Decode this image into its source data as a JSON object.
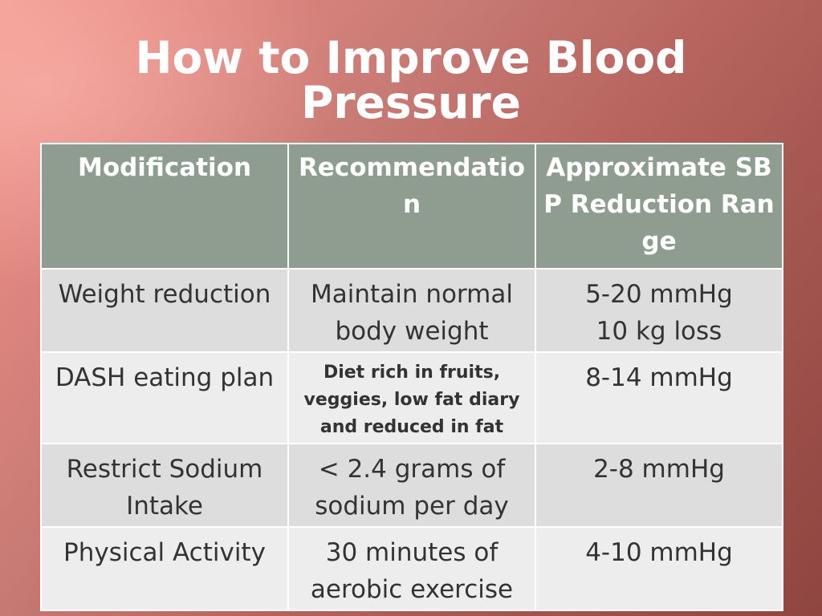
{
  "title": {
    "line1": "How to Improve Blood",
    "line2": "Pressure"
  },
  "table": {
    "headers": {
      "modification": "Modification",
      "recommendation": "Recommendation",
      "reduction": "Approximate SBP Reduction Range"
    },
    "rows": [
      {
        "modification": "Weight reduction",
        "recommendation": "Maintain normal body weight",
        "reduction_line1": "5-20 mmHg",
        "reduction_line2": "10 kg loss"
      },
      {
        "modification": "DASH eating plan",
        "recommendation": "Diet rich in fruits, veggies, low fat diary and reduced in fat",
        "reduction_line1": "8-14 mmHg"
      },
      {
        "modification": "Restrict Sodium Intake",
        "recommendation": "< 2.4 grams of sodium per day",
        "reduction_line1": "2-8 mmHg"
      },
      {
        "modification": "Physical Activity",
        "recommendation": "30 minutes of aerobic exercise",
        "reduction_line1": "4-10 mmHg"
      }
    ]
  }
}
